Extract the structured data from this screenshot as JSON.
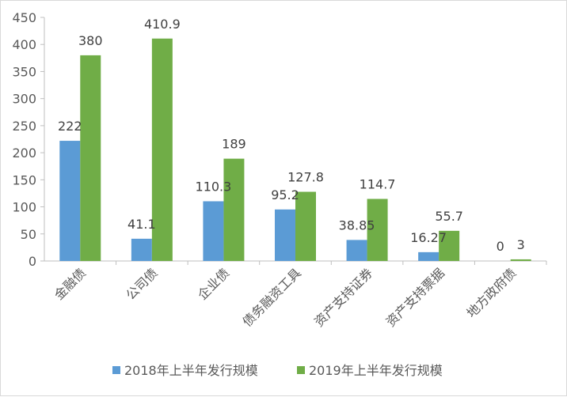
{
  "chart_data": {
    "type": "bar",
    "categories": [
      "金融债",
      "公司债",
      "企业债",
      "债务融资工具",
      "资产支持证券",
      "资产支持票据",
      "地方政府债"
    ],
    "series": [
      {
        "name": "2018年上半年发行规模",
        "color": "#5b9bd5",
        "values": [
          222,
          41.1,
          110.3,
          95.2,
          38.85,
          16.27,
          0
        ],
        "labels": [
          "222",
          "41.1",
          "110.3",
          "95.2",
          "38.85",
          "16.27",
          "0"
        ]
      },
      {
        "name": "2019年上半年发行规模",
        "color": "#70ad47",
        "values": [
          380,
          410.9,
          189,
          127.8,
          114.7,
          55.7,
          3
        ],
        "labels": [
          "380",
          "410.9",
          "189",
          "127.8",
          "114.7",
          "55.7",
          "3"
        ]
      }
    ],
    "y_ticks": [
      "0",
      "50",
      "100",
      "150",
      "200",
      "250",
      "300",
      "350",
      "400",
      "450"
    ],
    "ylim": [
      0,
      450
    ],
    "grid": false,
    "legend_position": "bottom"
  }
}
